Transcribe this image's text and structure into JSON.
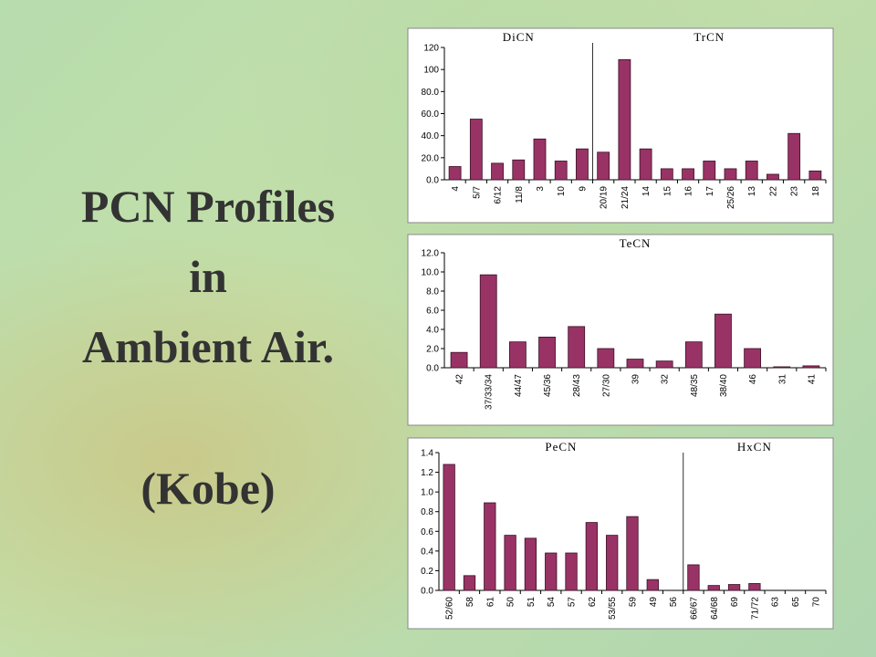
{
  "slide": {
    "title_lines": [
      "PCN Profiles",
      "in",
      "Ambient Air.",
      "(Kobe)"
    ]
  },
  "chart_data": [
    {
      "type": "bar",
      "group_labels": [
        "DiCN",
        "TrCN"
      ],
      "color": "#993366",
      "grid": false,
      "categories": [
        "4",
        "5/7",
        "6/12",
        "11/8",
        "3",
        "10",
        "9",
        "20/19",
        "21/24",
        "14",
        "15",
        "16",
        "17",
        "25/26",
        "13",
        "22",
        "23",
        "18"
      ],
      "values": [
        12,
        55,
        15,
        18,
        37,
        17,
        28,
        25,
        109,
        28,
        10,
        10,
        17,
        10,
        17,
        5,
        42,
        8
      ],
      "ylim": [
        0,
        120
      ],
      "yticks": [
        {
          "value": 0,
          "label": "0.0"
        },
        {
          "value": 20,
          "label": "20.0"
        },
        {
          "value": 40,
          "label": "40.0"
        },
        {
          "value": 60,
          "label": "60.0"
        },
        {
          "value": 80,
          "label": "80.0"
        },
        100,
        120
      ]
    },
    {
      "type": "bar",
      "group_labels": [
        "TeCN"
      ],
      "color": "#993366",
      "grid": false,
      "categories": [
        "42",
        "37/33/34",
        "44/47",
        "45/36",
        "28/43",
        "27/30",
        "39",
        "32",
        "48/35",
        "38/40",
        "46",
        "31",
        "41"
      ],
      "values": [
        1.6,
        9.7,
        2.7,
        3.2,
        4.3,
        2.0,
        0.9,
        0.7,
        2.7,
        5.6,
        2.0,
        0.1,
        0.2
      ],
      "ylim": [
        0,
        12
      ],
      "yticks": [
        {
          "value": 0,
          "label": "0.0"
        },
        {
          "value": 2,
          "label": "2.0"
        },
        {
          "value": 4,
          "label": "4.0"
        },
        {
          "value": 6,
          "label": "6.0"
        },
        {
          "value": 8,
          "label": "8.0"
        },
        {
          "value": 10,
          "label": "10.0"
        },
        {
          "value": 12,
          "label": "12.0"
        }
      ]
    },
    {
      "type": "bar",
      "group_labels": [
        "PeCN",
        "HxCN"
      ],
      "color": "#993366",
      "grid": false,
      "categories": [
        "52/60",
        "58",
        "61",
        "50",
        "51",
        "54",
        "57",
        "62",
        "53/55",
        "59",
        "49",
        "56",
        "66/67",
        "64/68",
        "69",
        "71/72",
        "63",
        "65",
        "70"
      ],
      "values": [
        1.28,
        0.15,
        0.89,
        0.56,
        0.53,
        0.38,
        0.38,
        0.69,
        0.56,
        0.75,
        0.11,
        0,
        0.26,
        0.05,
        0.06,
        0.07,
        0,
        0,
        0
      ],
      "ylim": [
        0,
        1.4
      ],
      "yticks": [
        {
          "value": 0,
          "label": "0.0"
        },
        0.2,
        0.4,
        0.6,
        0.8,
        {
          "value": 1,
          "label": "1.0"
        },
        1.2,
        1.4
      ]
    }
  ]
}
